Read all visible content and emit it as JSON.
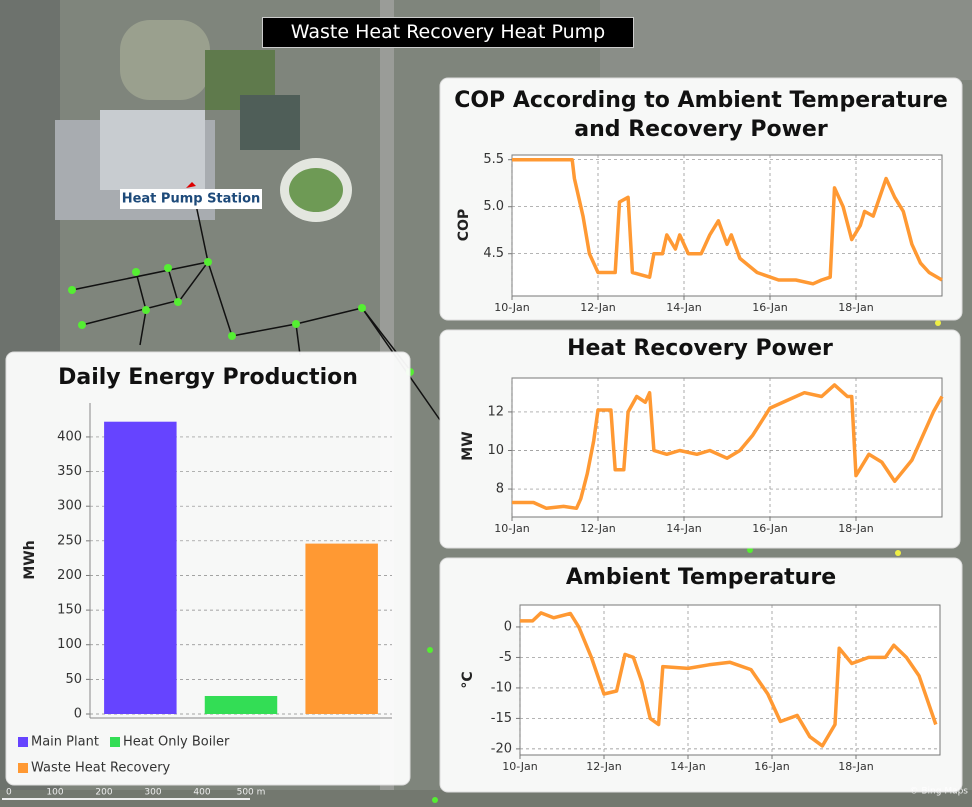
{
  "header": {
    "title": "Waste Heat Recovery Heat Pump"
  },
  "map": {
    "label": "Heat Pump Station",
    "scale_labels": [
      "0",
      "100",
      "200",
      "300",
      "400",
      "500 m"
    ],
    "attribution": "© Bing Maps"
  },
  "chart_data": [
    {
      "type": "bar",
      "title": "Daily Energy Production",
      "y_label": "MWh",
      "categories": [
        "Main Plant",
        "Heat Only Boiler",
        "Waste Heat Recovery"
      ],
      "values": [
        422,
        26,
        246
      ],
      "colors": [
        "#6644ff",
        "#33dd55",
        "#ff9933"
      ],
      "ylim": [
        0,
        449
      ],
      "yticks": [
        0,
        50,
        100,
        150,
        200,
        250,
        300,
        350,
        400
      ],
      "grid": true
    },
    {
      "type": "line",
      "title": "COP According to Ambient Temperature and Recovery Power",
      "y_label": "COP",
      "color": "#ff9933",
      "x": [
        10,
        11.4,
        11.45,
        11.55,
        11.65,
        11.8,
        12.0,
        12.4,
        12.5,
        12.7,
        12.8,
        13.2,
        13.3,
        13.5,
        13.6,
        13.8,
        13.9,
        14.1,
        14.4,
        14.6,
        14.8,
        15.0,
        15.1,
        15.3,
        15.7,
        16.2,
        16.6,
        17.0,
        17.2,
        17.4,
        17.5,
        17.7,
        17.9,
        18.1,
        18.2,
        18.4,
        18.7,
        18.9,
        19.1,
        19.3,
        19.5,
        19.7,
        20
      ],
      "values": [
        5.5,
        5.5,
        5.3,
        5.1,
        4.9,
        4.5,
        4.3,
        4.3,
        5.05,
        5.1,
        4.3,
        4.25,
        4.5,
        4.5,
        4.7,
        4.55,
        4.7,
        4.5,
        4.5,
        4.7,
        4.85,
        4.6,
        4.7,
        4.45,
        4.3,
        4.22,
        4.22,
        4.18,
        4.22,
        4.25,
        5.2,
        5.0,
        4.65,
        4.8,
        4.95,
        4.9,
        5.3,
        5.1,
        4.95,
        4.6,
        4.4,
        4.3,
        4.22
      ],
      "xlim": [
        10,
        20
      ],
      "ylim": [
        4.05,
        5.55
      ],
      "xticks": [
        {
          "value": 10,
          "label": "10-Jan"
        },
        {
          "value": 12,
          "label": "12-Jan"
        },
        {
          "value": 14,
          "label": "14-Jan"
        },
        {
          "value": 16,
          "label": "16-Jan"
        },
        {
          "value": 18,
          "label": "18-Jan"
        }
      ],
      "yticks": [
        4.5,
        {
          "value": 5,
          "label": "5.0"
        },
        5.5
      ],
      "grid": true
    },
    {
      "type": "line",
      "title": "Heat Recovery Power",
      "y_label": "MW",
      "color": "#ff9933",
      "x": [
        10,
        10.5,
        10.8,
        11.2,
        11.5,
        11.6,
        11.75,
        11.9,
        12.0,
        12.3,
        12.4,
        12.6,
        12.7,
        12.9,
        13.1,
        13.2,
        13.3,
        13.6,
        13.9,
        14.3,
        14.6,
        15.0,
        15.3,
        15.6,
        16.0,
        16.4,
        16.8,
        17.2,
        17.5,
        17.8,
        17.9,
        18.0,
        18.3,
        18.6,
        18.9,
        19.3,
        19.6,
        19.8,
        20
      ],
      "values": [
        7.3,
        7.3,
        7.0,
        7.1,
        7.0,
        7.5,
        8.8,
        10.5,
        12.1,
        12.1,
        9.0,
        9.0,
        12.0,
        12.8,
        12.5,
        13.0,
        10.0,
        9.8,
        10.0,
        9.8,
        10.0,
        9.6,
        10.0,
        10.8,
        12.2,
        12.6,
        13.0,
        12.8,
        13.4,
        12.8,
        12.8,
        8.7,
        9.8,
        9.4,
        8.4,
        9.5,
        11.0,
        12.0,
        12.8
      ],
      "xlim": [
        10,
        20
      ],
      "ylim": [
        6.55,
        13.76
      ],
      "xticks": [
        {
          "value": 10,
          "label": "10-Jan"
        },
        {
          "value": 12,
          "label": "12-Jan"
        },
        {
          "value": 14,
          "label": "14-Jan"
        },
        {
          "value": 16,
          "label": "16-Jan"
        },
        {
          "value": 18,
          "label": "18-Jan"
        }
      ],
      "yticks": [
        8,
        10,
        12
      ],
      "grid": true
    },
    {
      "type": "line",
      "title": "Ambient Temperature",
      "y_label": "°C",
      "color": "#ff9933",
      "x": [
        10,
        10.3,
        10.5,
        10.8,
        11.2,
        11.4,
        11.7,
        12.0,
        12.3,
        12.5,
        12.7,
        12.9,
        13.1,
        13.3,
        13.4,
        14.0,
        14.5,
        15.0,
        15.5,
        15.9,
        16.2,
        16.6,
        16.9,
        17.2,
        17.5,
        17.6,
        17.9,
        18.3,
        18.7,
        18.9,
        19.2,
        19.5,
        19.7,
        19.9
      ],
      "values": [
        1,
        1,
        2.3,
        1.5,
        2.2,
        0,
        -5,
        -11,
        -10.5,
        -4.5,
        -5,
        -9,
        -15,
        -16,
        -6.5,
        -6.8,
        -6.2,
        -5.8,
        -7,
        -11,
        -15.5,
        -14.5,
        -18,
        -19.5,
        -16,
        -3.5,
        -6,
        -5,
        -5,
        -3,
        -5,
        -8,
        -12,
        -16
      ],
      "xlim": [
        10,
        20
      ],
      "ylim": [
        -21,
        3.6
      ],
      "xticks": [
        {
          "value": 10,
          "label": "10-Jan"
        },
        {
          "value": 12,
          "label": "12-Jan"
        },
        {
          "value": 14,
          "label": "14-Jan"
        },
        {
          "value": 16,
          "label": "16-Jan"
        },
        {
          "value": 18,
          "label": "18-Jan"
        }
      ],
      "yticks": [
        0,
        -5,
        -10,
        -15,
        -20
      ],
      "grid": true
    }
  ]
}
